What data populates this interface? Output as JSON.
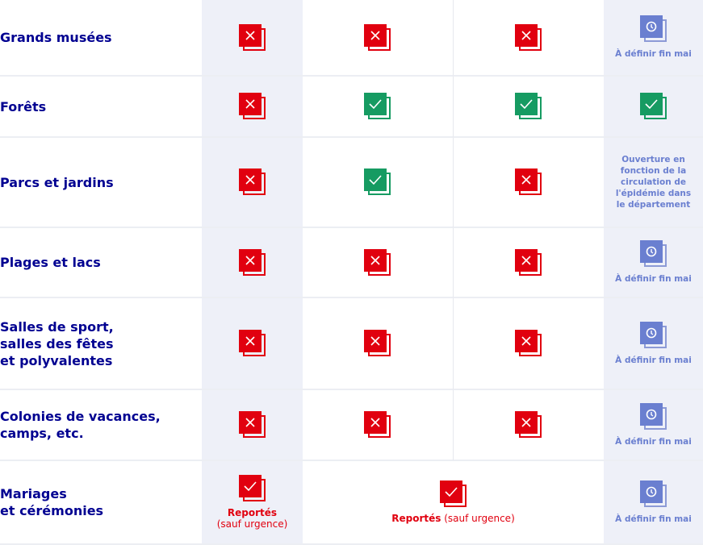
{
  "colors": {
    "label": "#000091",
    "cross": "#e1000f",
    "check": "#169b62",
    "pending": "#6a7fd0",
    "shaded_column": "#eef0f8"
  },
  "rows": [
    {
      "label": "Grands musées",
      "cells": [
        {
          "type": "cross"
        },
        {
          "type": "cross"
        },
        {
          "type": "cross"
        },
        {
          "type": "clock",
          "caption": "À définir fin mai"
        }
      ]
    },
    {
      "label": "Forêts",
      "cells": [
        {
          "type": "cross"
        },
        {
          "type": "check"
        },
        {
          "type": "check"
        },
        {
          "type": "check"
        }
      ]
    },
    {
      "label": "Parcs et jardins",
      "cells": [
        {
          "type": "cross"
        },
        {
          "type": "check"
        },
        {
          "type": "cross"
        },
        {
          "type": "text",
          "text": "Ouverture en\nfonction de la\ncirculation de\nl'épidémie dans\nle département"
        }
      ]
    },
    {
      "label": "Plages et lacs",
      "cells": [
        {
          "type": "cross"
        },
        {
          "type": "cross"
        },
        {
          "type": "cross"
        },
        {
          "type": "clock",
          "caption": "À définir fin mai"
        }
      ]
    },
    {
      "label": "Salles de sport,\nsalles des fêtes\net polyvalentes",
      "cells": [
        {
          "type": "cross"
        },
        {
          "type": "cross"
        },
        {
          "type": "cross"
        },
        {
          "type": "clock",
          "caption": "À définir fin mai"
        }
      ]
    },
    {
      "label": "Colonies de vacances,\ncamps, etc.",
      "cells": [
        {
          "type": "cross"
        },
        {
          "type": "cross"
        },
        {
          "type": "cross"
        },
        {
          "type": "clock",
          "caption": "À définir fin mai"
        }
      ]
    },
    {
      "label": "Mariages\net cérémonies",
      "cells": [
        {
          "type": "reported",
          "bold": "Reportés",
          "rest": "(sauf urgence)",
          "stacked": true
        },
        {
          "type": "reported",
          "bold": "Reportés",
          "rest": "(sauf urgence)",
          "merged": true
        },
        {
          "type": "clock",
          "caption": "À définir fin mai"
        }
      ]
    }
  ]
}
